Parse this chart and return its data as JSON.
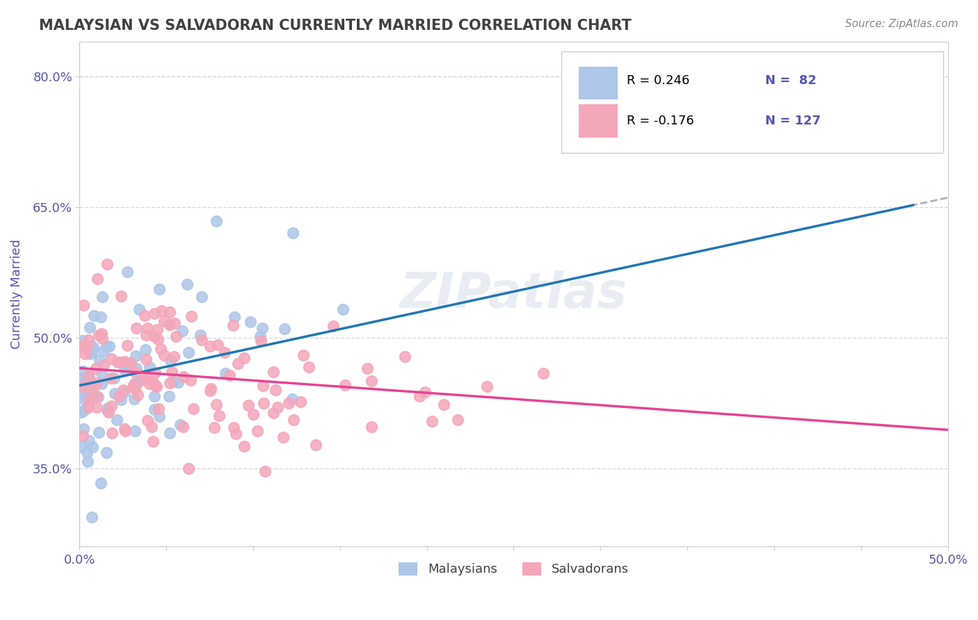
{
  "title": "MALAYSIAN VS SALVADORAN CURRENTLY MARRIED CORRELATION CHART",
  "source_text": "Source: ZipAtlas.com",
  "xlabel": "",
  "ylabel": "Currently Married",
  "xlim": [
    0.0,
    0.5
  ],
  "ylim": [
    0.26,
    0.84
  ],
  "xticks": [
    0.0,
    0.05,
    0.1,
    0.15,
    0.2,
    0.25,
    0.3,
    0.35,
    0.4,
    0.45,
    0.5
  ],
  "xticklabels": [
    "0.0%",
    "",
    "",
    "",
    "",
    "",
    "",
    "",
    "",
    "",
    "50.0%"
  ],
  "yticks": [
    0.35,
    0.5,
    0.65,
    0.8
  ],
  "yticklabels": [
    "35.0%",
    "50.0%",
    "65.0%",
    "80.0%"
  ],
  "watermark": "ZIPatlas",
  "legend_r1": "R = 0.246",
  "legend_n1": "N =  82",
  "legend_r2": "R = -0.176",
  "legend_n2": "N = 127",
  "malaysian_color": "#aec6e8",
  "salvadoran_color": "#f4a7b9",
  "blue_line_color": "#1f77b4",
  "pink_line_color": "#e84393",
  "dashed_line_color": "#b0b0b0",
  "grid_color": "#d0d8e8",
  "background_color": "#ffffff",
  "title_color": "#404040",
  "source_color": "#888888",
  "axis_label_color": "#5555aa",
  "tick_label_color": "#5555aa",
  "malaysian_seed": 42,
  "salvadoran_seed": 7,
  "R_malaysian": 0.246,
  "N_malaysian": 82,
  "R_salvadoran": -0.176,
  "N_salvadoran": 127
}
